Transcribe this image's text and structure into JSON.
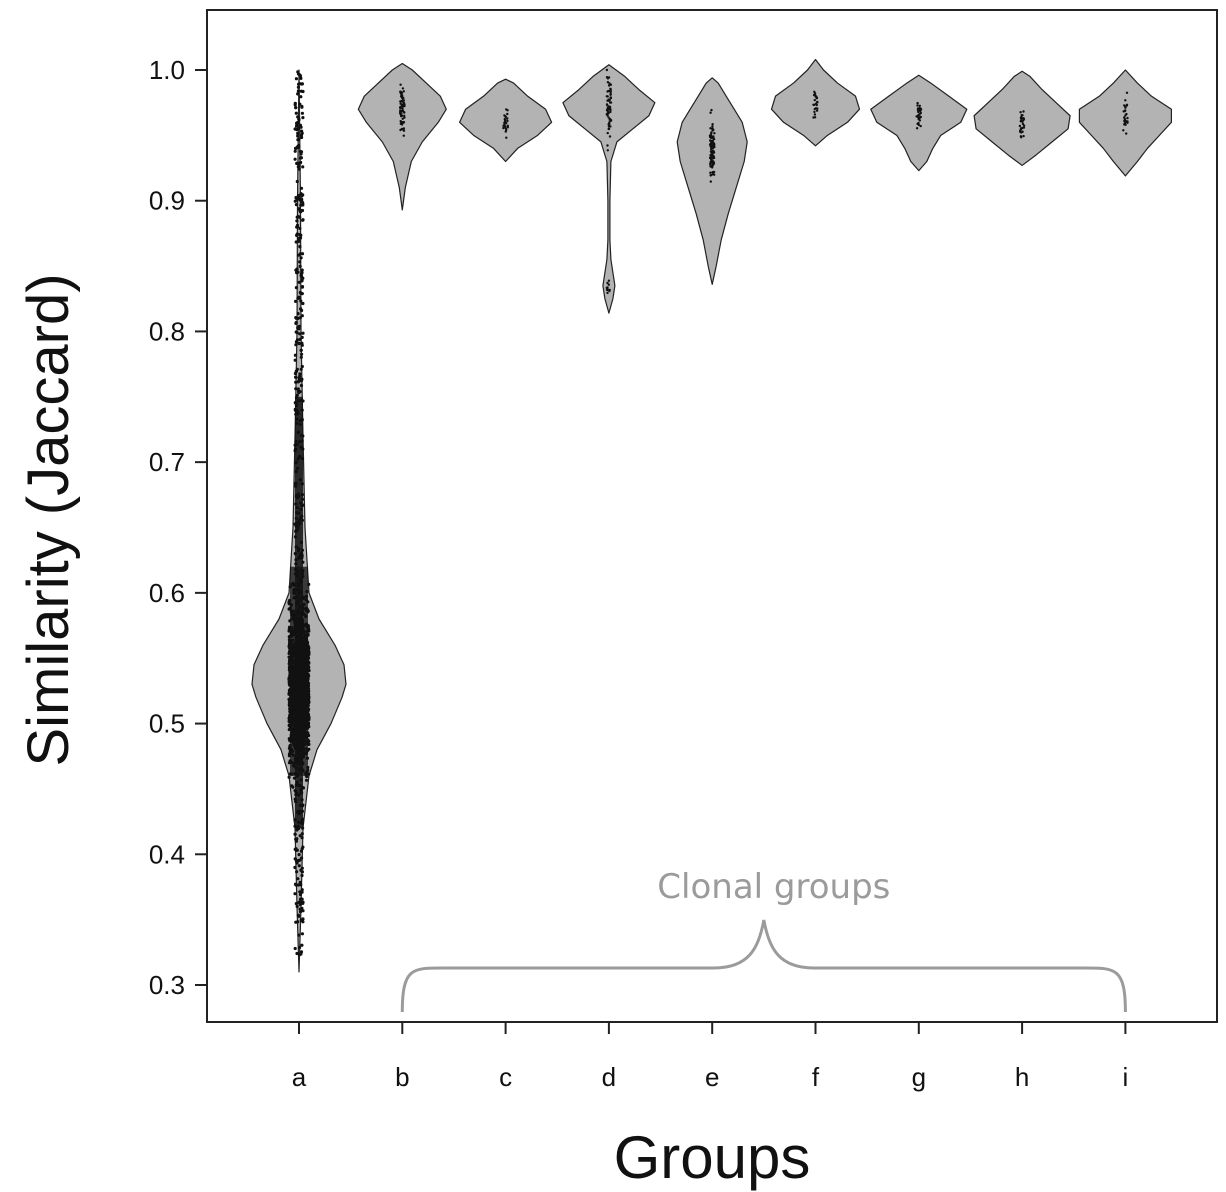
{
  "chart_data": {
    "type": "violin",
    "title": "",
    "xlabel": "Groups",
    "ylabel": "Similarity (Jaccard)",
    "ylim": [
      0.3,
      1.0
    ],
    "yticks": [
      "0.3",
      "0.4",
      "0.5",
      "0.6",
      "0.7",
      "0.8",
      "0.9",
      "1.0"
    ],
    "categories": [
      "a",
      "b",
      "c",
      "d",
      "e",
      "f",
      "g",
      "h",
      "i"
    ],
    "violins": [
      {
        "group": "a",
        "min": 0.31,
        "max": 1.0,
        "peak": 0.53,
        "n_points": 2000
      },
      {
        "group": "b",
        "min": 0.89,
        "max": 1.0,
        "peak": 0.97,
        "n_points": 70
      },
      {
        "group": "c",
        "min": 0.93,
        "max": 0.99,
        "peak": 0.96,
        "n_points": 25
      },
      {
        "group": "d",
        "min": 0.82,
        "max": 1.0,
        "peak": 0.97,
        "secondary_peak": 0.835,
        "n_points": 80
      },
      {
        "group": "e",
        "min": 0.84,
        "max": 0.99,
        "peak": 0.94,
        "n_points": 110
      },
      {
        "group": "f",
        "min": 0.94,
        "max": 1.0,
        "peak": 0.975,
        "n_points": 25
      },
      {
        "group": "g",
        "min": 0.92,
        "max": 0.99,
        "peak": 0.965,
        "n_points": 30
      },
      {
        "group": "h",
        "min": 0.93,
        "max": 1.0,
        "peak": 0.96,
        "n_points": 30
      },
      {
        "group": "i",
        "min": 0.92,
        "max": 1.0,
        "peak": 0.965,
        "n_points": 25
      }
    ],
    "annotation": {
      "text": "Clonal groups",
      "spans": [
        "b",
        "i"
      ]
    },
    "colors": {
      "violin_fill": "#b3b3b3",
      "violin_stroke": "#222222",
      "points": "#111111",
      "annotation": "#9b9b9b"
    }
  }
}
